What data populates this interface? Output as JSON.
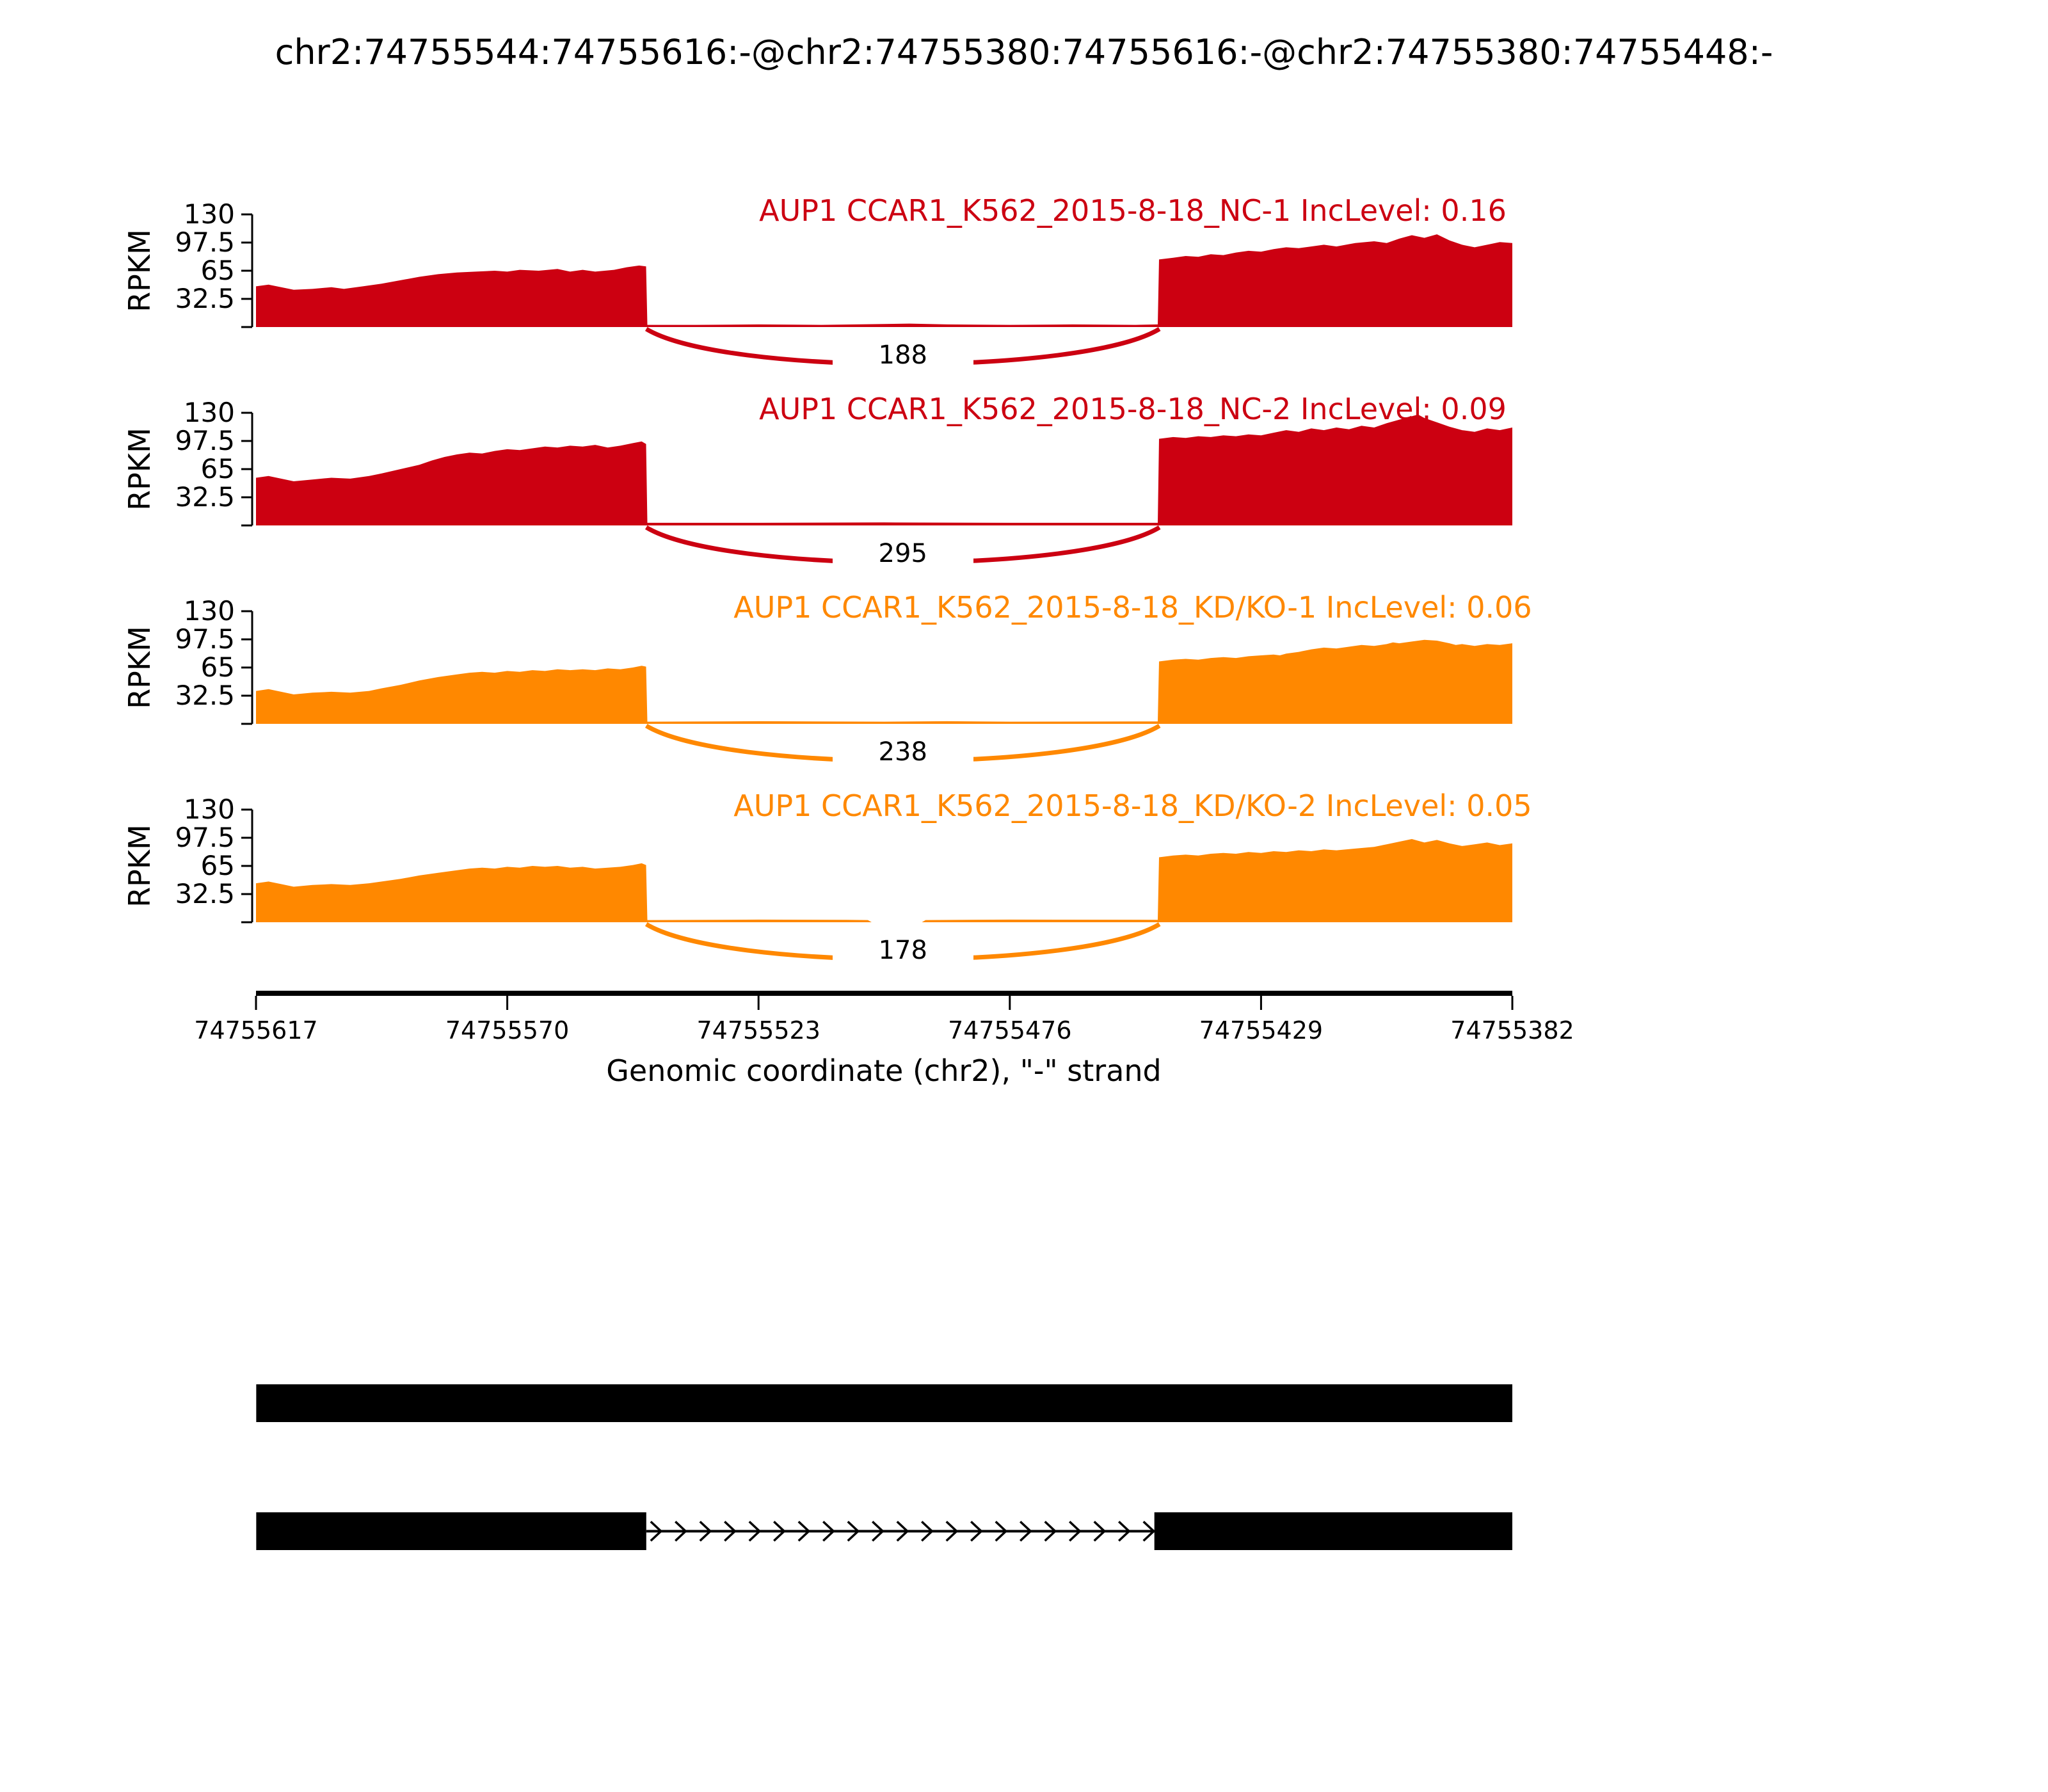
{
  "title": "chr2:74755544:74755616:-@chr2:74755380:74755616:-@chr2:74755380:74755448:-",
  "y_axis_label": "RPKM",
  "chart_data": {
    "type": "area",
    "subtype": "rmats-sashimi-plot",
    "title": "chr2:74755544:74755616:-@chr2:74755380:74755616:-@chr2:74755380:74755448:-",
    "x_label": "Genomic coordinate (chr2), \"-\" strand",
    "strand": "-",
    "chromosome": "chr2",
    "x_range": [
      74755617,
      74755382
    ],
    "x_ticks": [
      "74755617",
      "74755570",
      "74755523",
      "74755476",
      "74755429",
      "74755382"
    ],
    "y_max": 130,
    "y_ticks": [
      "130",
      "97.5",
      "65",
      "32.5"
    ],
    "y_tick_values": [
      130,
      97.5,
      65,
      32.5
    ],
    "grid": false,
    "junction": {
      "left_coord": 74755544,
      "right_coord": 74755448
    },
    "tracks": [
      {
        "name": "NC-1",
        "label": "AUP1 CCAR1_K562_2015-8-18_NC-1 IncLevel: 0.16",
        "inc_level": 0.16,
        "junction_reads": "188",
        "color": "#CC0011",
        "coverage": [
          [
            0,
            47
          ],
          [
            0.01,
            49
          ],
          [
            0.02,
            46
          ],
          [
            0.03,
            43
          ],
          [
            0.045,
            44
          ],
          [
            0.06,
            46
          ],
          [
            0.07,
            44
          ],
          [
            0.085,
            47
          ],
          [
            0.1,
            50
          ],
          [
            0.115,
            54
          ],
          [
            0.13,
            58
          ],
          [
            0.145,
            61
          ],
          [
            0.16,
            63
          ],
          [
            0.175,
            64
          ],
          [
            0.19,
            65
          ],
          [
            0.2,
            64
          ],
          [
            0.21,
            66
          ],
          [
            0.225,
            65
          ],
          [
            0.24,
            67
          ],
          [
            0.25,
            64
          ],
          [
            0.26,
            66
          ],
          [
            0.27,
            64
          ],
          [
            0.285,
            66
          ],
          [
            0.295,
            69
          ],
          [
            0.305,
            71
          ],
          [
            0.3105,
            70
          ],
          [
            0.3115,
            2.5
          ],
          [
            0.35,
            2.5
          ],
          [
            0.4,
            3
          ],
          [
            0.45,
            2.5
          ],
          [
            0.5,
            3.5
          ],
          [
            0.52,
            4
          ],
          [
            0.55,
            3
          ],
          [
            0.6,
            2.5
          ],
          [
            0.65,
            3
          ],
          [
            0.7,
            2.5
          ],
          [
            0.7178,
            3
          ],
          [
            0.7188,
            78
          ],
          [
            0.73,
            80
          ],
          [
            0.74,
            82
          ],
          [
            0.75,
            81
          ],
          [
            0.76,
            84
          ],
          [
            0.77,
            83
          ],
          [
            0.78,
            86
          ],
          [
            0.79,
            88
          ],
          [
            0.8,
            87
          ],
          [
            0.81,
            90
          ],
          [
            0.82,
            92
          ],
          [
            0.83,
            91
          ],
          [
            0.84,
            93
          ],
          [
            0.85,
            95
          ],
          [
            0.86,
            93
          ],
          [
            0.875,
            97
          ],
          [
            0.89,
            99
          ],
          [
            0.9,
            97
          ],
          [
            0.91,
            102
          ],
          [
            0.92,
            106
          ],
          [
            0.93,
            103
          ],
          [
            0.94,
            107
          ],
          [
            0.95,
            100
          ],
          [
            0.96,
            95
          ],
          [
            0.97,
            92
          ],
          [
            0.98,
            95
          ],
          [
            0.99,
            98
          ],
          [
            1,
            97
          ]
        ]
      },
      {
        "name": "NC-2",
        "label": "AUP1 CCAR1_K562_2015-8-18_NC-2 IncLevel: 0.09",
        "inc_level": 0.09,
        "junction_reads": "295",
        "color": "#CC0011",
        "coverage": [
          [
            0,
            55
          ],
          [
            0.01,
            57
          ],
          [
            0.02,
            54
          ],
          [
            0.03,
            51
          ],
          [
            0.045,
            53
          ],
          [
            0.06,
            55
          ],
          [
            0.075,
            54
          ],
          [
            0.09,
            57
          ],
          [
            0.1,
            60
          ],
          [
            0.115,
            65
          ],
          [
            0.13,
            70
          ],
          [
            0.14,
            75
          ],
          [
            0.15,
            79
          ],
          [
            0.16,
            82
          ],
          [
            0.17,
            84
          ],
          [
            0.18,
            83
          ],
          [
            0.19,
            86
          ],
          [
            0.2,
            88
          ],
          [
            0.21,
            87
          ],
          [
            0.22,
            89
          ],
          [
            0.23,
            91
          ],
          [
            0.24,
            90
          ],
          [
            0.25,
            92
          ],
          [
            0.26,
            91
          ],
          [
            0.27,
            93
          ],
          [
            0.28,
            90
          ],
          [
            0.29,
            92
          ],
          [
            0.3,
            95
          ],
          [
            0.307,
            97
          ],
          [
            0.3105,
            94
          ],
          [
            0.3115,
            3
          ],
          [
            0.4,
            3
          ],
          [
            0.5,
            3.5
          ],
          [
            0.6,
            3
          ],
          [
            0.7178,
            3
          ],
          [
            0.7188,
            100
          ],
          [
            0.73,
            102
          ],
          [
            0.74,
            101
          ],
          [
            0.75,
            103
          ],
          [
            0.76,
            102
          ],
          [
            0.77,
            104
          ],
          [
            0.78,
            103
          ],
          [
            0.79,
            105
          ],
          [
            0.8,
            104
          ],
          [
            0.81,
            107
          ],
          [
            0.82,
            110
          ],
          [
            0.83,
            108
          ],
          [
            0.84,
            112
          ],
          [
            0.85,
            110
          ],
          [
            0.86,
            113
          ],
          [
            0.87,
            111
          ],
          [
            0.88,
            115
          ],
          [
            0.89,
            113
          ],
          [
            0.9,
            118
          ],
          [
            0.91,
            122
          ],
          [
            0.92,
            126
          ],
          [
            0.925,
            128
          ],
          [
            0.93,
            124
          ],
          [
            0.94,
            119
          ],
          [
            0.95,
            114
          ],
          [
            0.96,
            110
          ],
          [
            0.97,
            108
          ],
          [
            0.98,
            112
          ],
          [
            0.99,
            110
          ],
          [
            1,
            113
          ]
        ]
      },
      {
        "name": "KD/KO-1",
        "label": "AUP1 CCAR1_K562_2015-8-18_KD/KO-1 IncLevel: 0.06",
        "inc_level": 0.06,
        "junction_reads": "238",
        "color": "#FF8800",
        "coverage": [
          [
            0,
            38
          ],
          [
            0.01,
            40
          ],
          [
            0.02,
            37
          ],
          [
            0.03,
            34
          ],
          [
            0.045,
            36
          ],
          [
            0.06,
            37
          ],
          [
            0.075,
            36
          ],
          [
            0.09,
            38
          ],
          [
            0.1,
            41
          ],
          [
            0.115,
            45
          ],
          [
            0.13,
            50
          ],
          [
            0.145,
            54
          ],
          [
            0.16,
            57
          ],
          [
            0.17,
            59
          ],
          [
            0.18,
            60
          ],
          [
            0.19,
            59
          ],
          [
            0.2,
            61
          ],
          [
            0.21,
            60
          ],
          [
            0.22,
            62
          ],
          [
            0.23,
            61
          ],
          [
            0.24,
            63
          ],
          [
            0.25,
            62
          ],
          [
            0.26,
            63
          ],
          [
            0.27,
            62
          ],
          [
            0.28,
            64
          ],
          [
            0.29,
            63
          ],
          [
            0.3,
            65
          ],
          [
            0.307,
            67
          ],
          [
            0.3105,
            66
          ],
          [
            0.3115,
            2.5
          ],
          [
            0.4,
            3
          ],
          [
            0.5,
            2.5
          ],
          [
            0.55,
            3
          ],
          [
            0.6,
            2.5
          ],
          [
            0.7178,
            2.8
          ],
          [
            0.7188,
            72
          ],
          [
            0.73,
            74
          ],
          [
            0.74,
            75
          ],
          [
            0.75,
            74
          ],
          [
            0.76,
            76
          ],
          [
            0.77,
            77
          ],
          [
            0.78,
            76
          ],
          [
            0.79,
            78
          ],
          [
            0.8,
            79
          ],
          [
            0.81,
            80
          ],
          [
            0.815,
            79
          ],
          [
            0.82,
            81
          ],
          [
            0.83,
            83
          ],
          [
            0.84,
            86
          ],
          [
            0.85,
            88
          ],
          [
            0.86,
            87
          ],
          [
            0.87,
            89
          ],
          [
            0.88,
            91
          ],
          [
            0.89,
            90
          ],
          [
            0.9,
            92
          ],
          [
            0.905,
            94
          ],
          [
            0.91,
            93
          ],
          [
            0.92,
            95
          ],
          [
            0.93,
            97
          ],
          [
            0.94,
            96
          ],
          [
            0.95,
            93
          ],
          [
            0.955,
            91
          ],
          [
            0.96,
            92
          ],
          [
            0.97,
            90
          ],
          [
            0.98,
            92
          ],
          [
            0.99,
            91
          ],
          [
            1,
            93
          ]
        ]
      },
      {
        "name": "KD/KO-2",
        "label": "AUP1 CCAR1_K562_2015-8-18_KD/KO-2 IncLevel: 0.05",
        "inc_level": 0.05,
        "junction_reads": "178",
        "color": "#FF8800",
        "coverage": [
          [
            0,
            45
          ],
          [
            0.01,
            47
          ],
          [
            0.02,
            44
          ],
          [
            0.03,
            41
          ],
          [
            0.045,
            43
          ],
          [
            0.06,
            44
          ],
          [
            0.075,
            43
          ],
          [
            0.09,
            45
          ],
          [
            0.1,
            47
          ],
          [
            0.115,
            50
          ],
          [
            0.13,
            54
          ],
          [
            0.145,
            57
          ],
          [
            0.16,
            60
          ],
          [
            0.17,
            62
          ],
          [
            0.18,
            63
          ],
          [
            0.19,
            62
          ],
          [
            0.2,
            64
          ],
          [
            0.21,
            63
          ],
          [
            0.22,
            65
          ],
          [
            0.23,
            64
          ],
          [
            0.24,
            65
          ],
          [
            0.25,
            63
          ],
          [
            0.26,
            64
          ],
          [
            0.27,
            62
          ],
          [
            0.28,
            63
          ],
          [
            0.29,
            64
          ],
          [
            0.3,
            66
          ],
          [
            0.307,
            68
          ],
          [
            0.3105,
            66
          ],
          [
            0.3115,
            2.5
          ],
          [
            0.4,
            3
          ],
          [
            0.47,
            2.8
          ],
          [
            0.487,
            2.5
          ],
          [
            0.49,
            0
          ],
          [
            0.53,
            0
          ],
          [
            0.533,
            2.5
          ],
          [
            0.6,
            3
          ],
          [
            0.7178,
            2.8
          ],
          [
            0.7188,
            75
          ],
          [
            0.73,
            77
          ],
          [
            0.74,
            78
          ],
          [
            0.75,
            77
          ],
          [
            0.76,
            79
          ],
          [
            0.77,
            80
          ],
          [
            0.78,
            79
          ],
          [
            0.79,
            81
          ],
          [
            0.8,
            80
          ],
          [
            0.81,
            82
          ],
          [
            0.82,
            81
          ],
          [
            0.83,
            83
          ],
          [
            0.84,
            82
          ],
          [
            0.85,
            84
          ],
          [
            0.86,
            83
          ],
          [
            0.875,
            85
          ],
          [
            0.89,
            87
          ],
          [
            0.9,
            90
          ],
          [
            0.91,
            93
          ],
          [
            0.92,
            96
          ],
          [
            0.93,
            92
          ],
          [
            0.94,
            95
          ],
          [
            0.95,
            91
          ],
          [
            0.96,
            88
          ],
          [
            0.97,
            90
          ],
          [
            0.98,
            92
          ],
          [
            0.99,
            89
          ],
          [
            1,
            91
          ]
        ]
      }
    ],
    "transcripts": {
      "color": "#000000",
      "inclusion_isoform": {
        "exons_genomic": [
          [
            74755616,
            74755380
          ]
        ]
      },
      "skipping_isoform": {
        "exons_genomic": [
          [
            74755616,
            74755544
          ],
          [
            74755448,
            74755380
          ]
        ],
        "intron_genomic": [
          74755544,
          74755448
        ],
        "intron_arrow_count": 21,
        "intron_arrow_direction": "right"
      }
    }
  }
}
